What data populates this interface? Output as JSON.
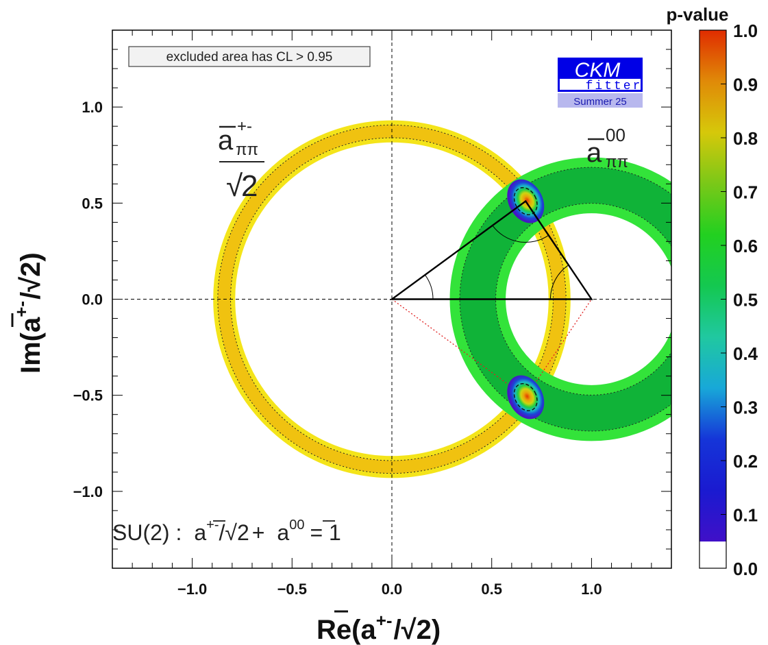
{
  "chart_data": {
    "type": "contour",
    "title": "",
    "xlabel": "Re(ā+-/√2)",
    "ylabel": "Im(ā+-/√2)",
    "xlabel_parts": {
      "main": "Re(",
      "abar": "a",
      "sup": "+-",
      "rest": "/",
      "sqrt": "√",
      "two": "2",
      "close": ")"
    },
    "ylabel_parts": {
      "main": "Im(",
      "abar": "a",
      "sup": "+-",
      "rest": "/",
      "sqrt": "√",
      "two": "2",
      "close": ")"
    },
    "xlim": [
      -1.4,
      1.4
    ],
    "ylim": [
      -1.4,
      1.4
    ],
    "x_ticks": [
      -1.0,
      -0.5,
      0.0,
      0.5,
      1.0
    ],
    "x_tick_labels": [
      "−1.0",
      "−0.5",
      "0.0",
      "0.5",
      "1.0"
    ],
    "y_ticks": [
      -1.0,
      -0.5,
      0.0,
      0.5,
      1.0
    ],
    "y_tick_labels": [
      "−1.0",
      "−0.5",
      "0.0",
      "0.5",
      "1.0"
    ],
    "legend_box": "excluded area has CL > 0.95",
    "colorbar": {
      "title": "p-value",
      "ticks": [
        0.0,
        0.1,
        0.2,
        0.3,
        0.4,
        0.5,
        0.6,
        0.7,
        0.8,
        0.9,
        1.0
      ],
      "tick_labels": [
        "0.0",
        "0.1",
        "0.2",
        "0.3",
        "0.4",
        "0.5",
        "0.6",
        "0.7",
        "0.8",
        "0.9",
        "1.0"
      ],
      "range": [
        0.0,
        1.0
      ]
    },
    "rings": [
      {
        "name": "a+- / sqrt2 constraint",
        "center": [
          0.0,
          0.0
        ],
        "radius": 0.84,
        "outer_halfwidth": 0.055,
        "inner_halfwidth": 0.032,
        "outer_color": "#f4e41a",
        "inner_color": "#f0c210"
      },
      {
        "name": "a00 constraint",
        "center": [
          1.0,
          0.0
        ],
        "radius": 0.57,
        "outer_halfwidth": 0.14,
        "inner_halfwidth": 0.09,
        "outer_color": "#33e33a",
        "inner_color": "#10b338"
      }
    ],
    "solutions": [
      {
        "name": "upper solution",
        "center": [
          0.67,
          0.51
        ],
        "semi_axes": [
          0.085,
          0.12
        ]
      },
      {
        "name": "lower solution",
        "center": [
          0.67,
          -0.51
        ],
        "semi_axes": [
          0.085,
          0.12
        ]
      }
    ],
    "triangle": [
      [
        0.0,
        0.0
      ],
      [
        1.0,
        0.0
      ],
      [
        0.67,
        0.51
      ]
    ],
    "mirror_triangle": [
      [
        0.0,
        0.0
      ],
      [
        1.0,
        0.0
      ],
      [
        0.67,
        -0.51
      ]
    ],
    "annotations": {
      "apm_label": {
        "abar": "a",
        "sup": "+-",
        "sub": "ππ",
        "denom_sqrt": "√",
        "denom_two": "2"
      },
      "a00_label": {
        "abar": "a",
        "sup": "00",
        "sub": "ππ"
      },
      "su2_relation": {
        "prefix": "SU(2) :",
        "a1": "a",
        "sup1": "+-",
        "mid": "/",
        "sqrt": "√",
        "two": "2",
        "plus": "+",
        "a2": "a",
        "sup2": "00",
        "eq": "= 1"
      }
    },
    "logo": {
      "top": "CKM",
      "bottom": "fitter",
      "season": "Summer 25"
    },
    "colors": {
      "frame": "#000000",
      "logo_blue": "#0000e6",
      "logo_season_bg": "#b8b8ee",
      "triangle": "#000000",
      "mirror": "#e02020"
    }
  }
}
